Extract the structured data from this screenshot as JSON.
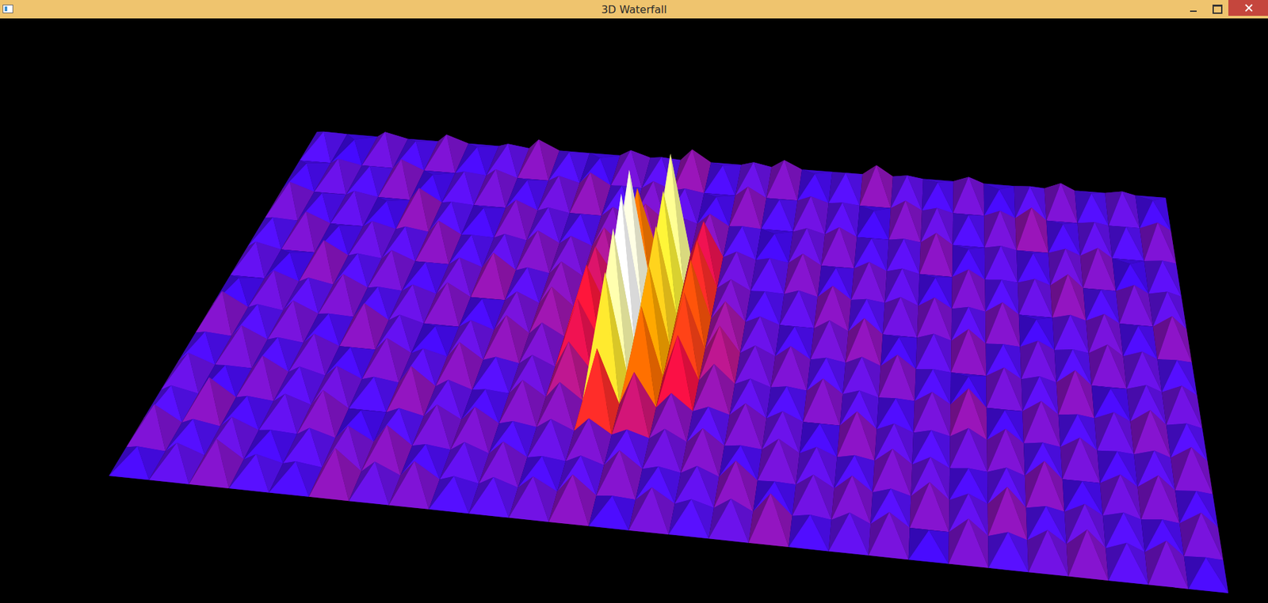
{
  "window": {
    "title": "3D Waterfall"
  },
  "chart_data": {
    "type": "surface3d",
    "tick_labels": false,
    "zlim": [
      0,
      100
    ],
    "values": [
      [
        14,
        9,
        18,
        12,
        20,
        11,
        16,
        22,
        13,
        10,
        19,
        15,
        24,
        12,
        17,
        21,
        11,
        14,
        23,
        16,
        12,
        19,
        10,
        15,
        20,
        13,
        17,
        11
      ],
      [
        11,
        17,
        13,
        21,
        10,
        15,
        19,
        12,
        18,
        23,
        14,
        20,
        16,
        11,
        22,
        13,
        18,
        15,
        10,
        21,
        17,
        13,
        19,
        24,
        12,
        16,
        14,
        20
      ],
      [
        19,
        12,
        16,
        10,
        23,
        14,
        11,
        20,
        16,
        13,
        21,
        26,
        18,
        22,
        14,
        10,
        17,
        20,
        13,
        15,
        22,
        11,
        16,
        12,
        18,
        21,
        10,
        15
      ],
      [
        13,
        20,
        11,
        17,
        15,
        22,
        13,
        16,
        21,
        19,
        28,
        62,
        92,
        40,
        18,
        15,
        21,
        12,
        19,
        16,
        11,
        20,
        14,
        17,
        23,
        13,
        19,
        16
      ],
      [
        16,
        10,
        22,
        14,
        19,
        12,
        18,
        24,
        15,
        22,
        36,
        98,
        84,
        48,
        20,
        13,
        16,
        22,
        14,
        18,
        20,
        15,
        21,
        10,
        16,
        19,
        12,
        22
      ],
      [
        10,
        18,
        15,
        20,
        13,
        17,
        21,
        11,
        19,
        25,
        44,
        100,
        78,
        55,
        26,
        17,
        12,
        19,
        23,
        11,
        16,
        22,
        13,
        18,
        14,
        20,
        17,
        13
      ],
      [
        21,
        14,
        19,
        12,
        22,
        16,
        10,
        17,
        23,
        20,
        40,
        94,
        70,
        52,
        30,
        18,
        20,
        14,
        17,
        21,
        13,
        10,
        19,
        15,
        22,
        11,
        16,
        18
      ],
      [
        12,
        19,
        13,
        18,
        11,
        20,
        15,
        22,
        14,
        18,
        30,
        82,
        60,
        42,
        24,
        16,
        13,
        21,
        15,
        12,
        19,
        24,
        11,
        20,
        13,
        17,
        21,
        14
      ],
      [
        17,
        11,
        20,
        15,
        18,
        13,
        23,
        16,
        12,
        21,
        22,
        48,
        34,
        22,
        15,
        20,
        17,
        11,
        22,
        16,
        14,
        18,
        20,
        13,
        19,
        12,
        15,
        20
      ],
      [
        14,
        22,
        12,
        16,
        21,
        10,
        14,
        19,
        20,
        13,
        17,
        20,
        15,
        18,
        21,
        12,
        19,
        16,
        13,
        20,
        17,
        12,
        15,
        22,
        11,
        18,
        20,
        12
      ],
      [
        20,
        13,
        17,
        11,
        15,
        19,
        22,
        12,
        16,
        19,
        12,
        15,
        21,
        13,
        16,
        22,
        11,
        18,
        20,
        14,
        21,
        16,
        23,
        13,
        17,
        14,
        12,
        19
      ],
      [
        11,
        16,
        21,
        14,
        12,
        23,
        17,
        20,
        13,
        15,
        18,
        22,
        11,
        19,
        14,
        17,
        23,
        12,
        16,
        19,
        10,
        20,
        14,
        18,
        21,
        15,
        19,
        11
      ]
    ]
  }
}
